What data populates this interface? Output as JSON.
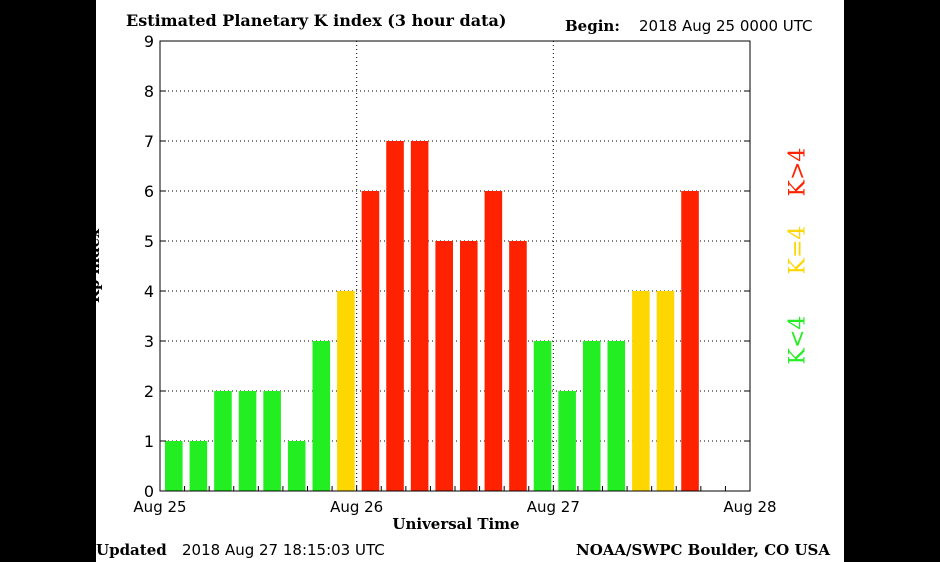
{
  "header": {
    "title": "Estimated Planetary K index (3 hour data)",
    "begin_label": "Begin:",
    "begin_value": "2018 Aug 25 0000 UTC"
  },
  "footer": {
    "updated_label": "Updated",
    "updated_value": "2018 Aug 27 18:15:03 UTC",
    "credit": "NOAA/SWPC Boulder, CO USA"
  },
  "legend": {
    "high": "K>4",
    "mid": "K=4",
    "low": "K<4"
  },
  "colors": {
    "low": "#22ee22",
    "mid": "#ffd700",
    "high": "#ff2200",
    "background": "#000000",
    "panel": "#ffffff"
  },
  "chart_data": {
    "type": "bar",
    "title": "Estimated Planetary K index (3 hour data)",
    "xlabel": "Universal Time",
    "ylabel": "Kp index",
    "ylim": [
      0,
      9
    ],
    "yticks": [
      "0",
      "1",
      "2",
      "3",
      "4",
      "5",
      "6",
      "7",
      "8",
      "9"
    ],
    "xticks": [
      "Aug 25",
      "Aug 26",
      "Aug 27",
      "Aug 28"
    ],
    "grid": "dotted",
    "categories": [
      "Aug 25 00",
      "Aug 25 03",
      "Aug 25 06",
      "Aug 25 09",
      "Aug 25 12",
      "Aug 25 15",
      "Aug 25 18",
      "Aug 25 21",
      "Aug 26 00",
      "Aug 26 03",
      "Aug 26 06",
      "Aug 26 09",
      "Aug 26 12",
      "Aug 26 15",
      "Aug 26 18",
      "Aug 26 21",
      "Aug 27 00",
      "Aug 27 03",
      "Aug 27 06",
      "Aug 27 09",
      "Aug 27 12",
      "Aug 27 15",
      "Aug 27 18"
    ],
    "values": [
      1,
      1,
      2,
      2,
      2,
      1,
      3,
      4,
      6,
      7,
      7,
      5,
      5,
      6,
      5,
      3,
      2,
      3,
      3,
      4,
      4,
      6,
      0
    ]
  }
}
